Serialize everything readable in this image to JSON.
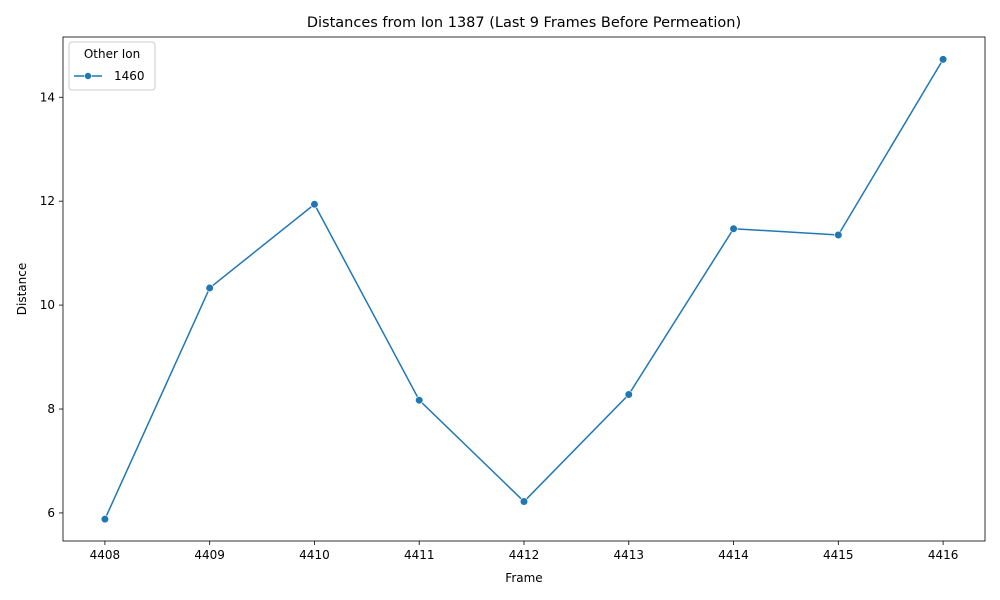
{
  "chart_data": {
    "type": "line",
    "title": "Distances from Ion 1387 (Last 9 Frames Before Permeation)",
    "xlabel": "Frame",
    "ylabel": "Distance",
    "x": [
      4408,
      4409,
      4410,
      4411,
      4412,
      4413,
      4414,
      4415,
      4416
    ],
    "x_tick_labels": [
      "4408",
      "4409",
      "4410",
      "4411",
      "4412",
      "4413",
      "4414",
      "4415",
      "4416"
    ],
    "y_ticks": [
      6,
      8,
      10,
      12,
      14
    ],
    "y_tick_labels": [
      "6",
      "8",
      "10",
      "12",
      "14"
    ],
    "xlim": [
      4407.6,
      4416.4
    ],
    "ylim": [
      5.46,
      15.16
    ],
    "grid": false,
    "legend": {
      "title": "Other Ion",
      "position": "top-left"
    },
    "series": [
      {
        "name": "1460",
        "color": "#1f77b4",
        "marker": "circle",
        "values": [
          5.88,
          10.33,
          11.94,
          8.17,
          6.22,
          8.28,
          11.47,
          11.35,
          14.73
        ]
      }
    ]
  }
}
